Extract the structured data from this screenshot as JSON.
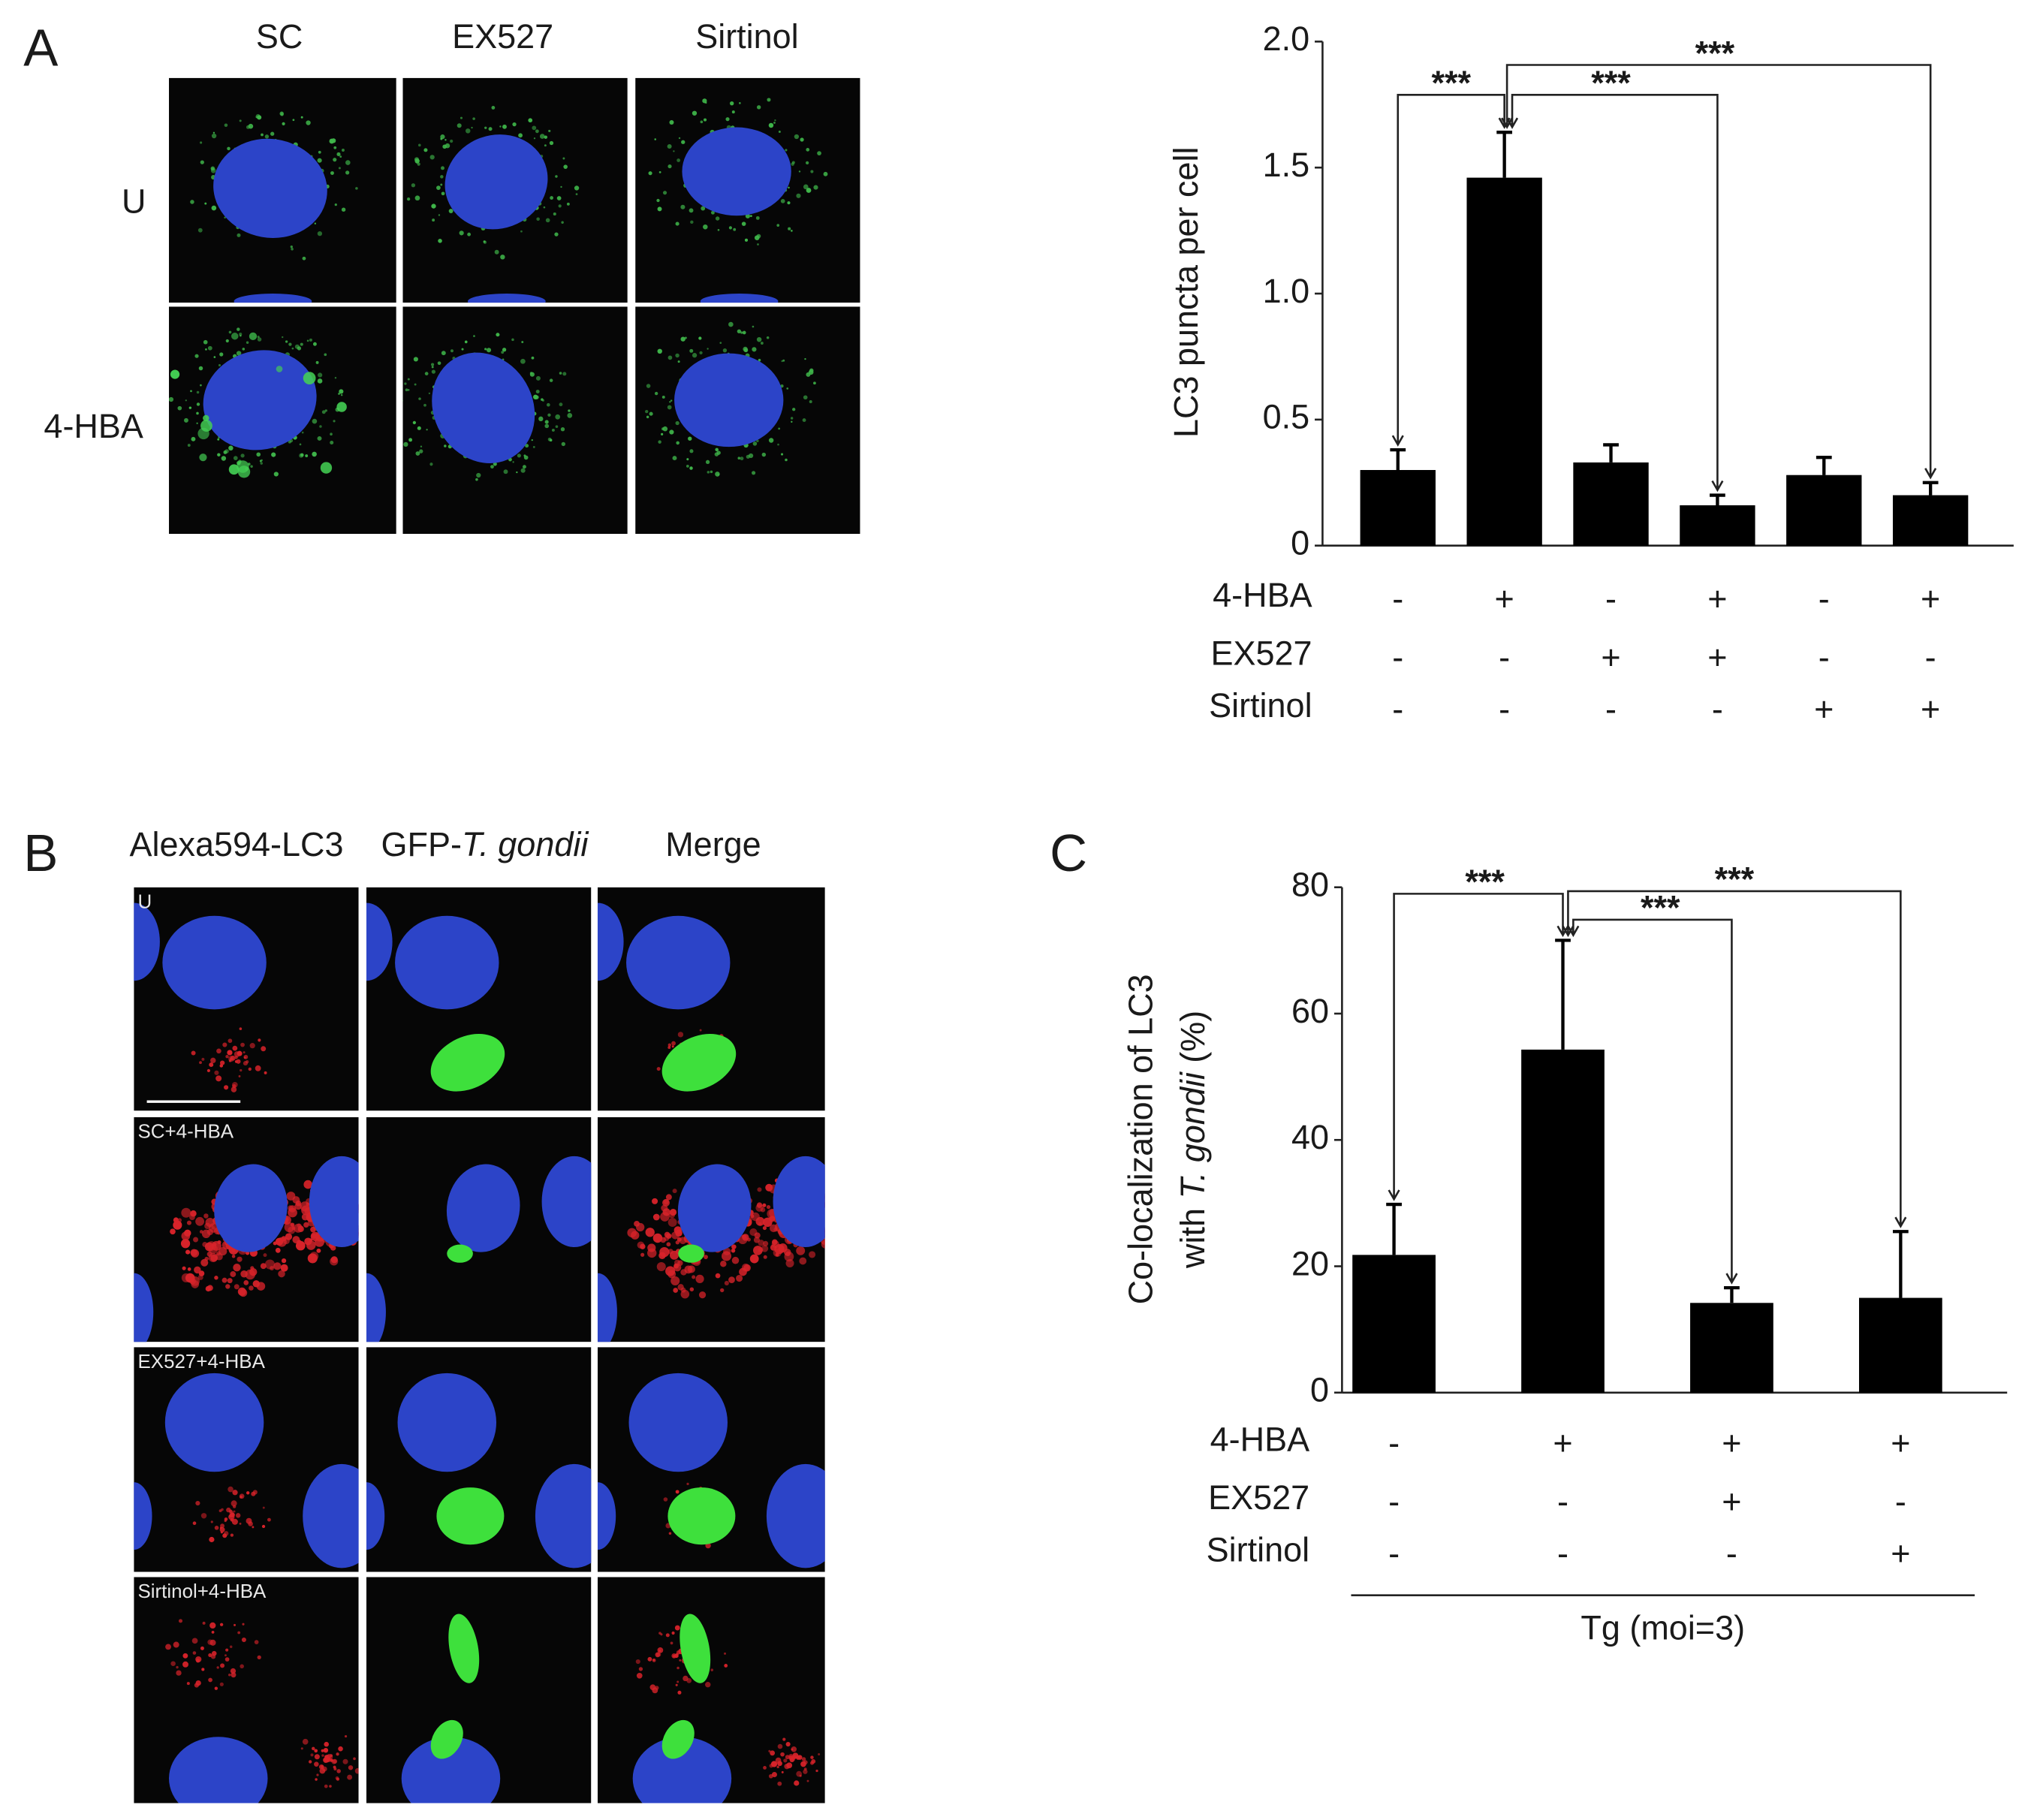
{
  "panel_a": {
    "letter": "A",
    "columns": [
      "SC",
      "EX527",
      "Sirtinol"
    ],
    "rows": [
      "U",
      "4-HBA"
    ]
  },
  "panel_b": {
    "letter": "B",
    "columns": [
      "Alexa594-LC3",
      [
        "GFP-",
        "T. gondii"
      ],
      "Merge"
    ],
    "row_labels": [
      "U",
      "SC+4-HBA",
      "EX527+4-HBA",
      "Sirtinol+4-HBA"
    ]
  },
  "chart_data": [
    {
      "type": "bar",
      "ylabel": "LC3 puncta per cell",
      "categories": [
        null,
        null,
        null,
        null,
        null,
        null
      ],
      "values": [
        0.3,
        1.46,
        0.33,
        0.16,
        0.28,
        0.2
      ],
      "errors": [
        0.08,
        0.18,
        0.07,
        0.04,
        0.07,
        0.05
      ],
      "color": "#000000",
      "ylim": [
        0,
        2
      ],
      "yticks": [
        0,
        0.5,
        {
          "value": 1,
          "label": "1.0"
        },
        1.5,
        {
          "value": 2,
          "label": "2.0"
        }
      ],
      "treatments": [
        {
          "name": "4-HBA",
          "signs": [
            "-",
            "+",
            "-",
            "+",
            "-",
            "+"
          ]
        },
        {
          "name": "EX527",
          "signs": [
            "-",
            "-",
            "+",
            "+",
            "-",
            "-"
          ]
        },
        {
          "name": "Sirtinol",
          "signs": [
            "-",
            "-",
            "-",
            "-",
            "+",
            "+"
          ]
        }
      ],
      "annotations": [
        "***",
        "***",
        "***"
      ]
    },
    {
      "type": "bar",
      "panel": "C",
      "ylabel": [
        [
          "Co-localization of LC3"
        ],
        [
          "with ",
          "T. gondii",
          " (%)"
        ]
      ],
      "categories": [
        null,
        null,
        null,
        null
      ],
      "values": [
        21.8,
        54.3,
        14.2,
        15.0
      ],
      "errors": [
        8.0,
        17.3,
        2.4,
        10.5
      ],
      "color": "#000000",
      "ylim": [
        0,
        80
      ],
      "yticks": [
        0,
        20,
        40,
        60,
        80
      ],
      "treatments": [
        {
          "name": "4-HBA",
          "signs": [
            "-",
            "+",
            "+",
            "+"
          ]
        },
        {
          "name": "EX527",
          "signs": [
            "-",
            "-",
            "+",
            "-"
          ]
        },
        {
          "name": "Sirtinol",
          "signs": [
            "-",
            "-",
            "-",
            "+"
          ]
        }
      ],
      "group_label": "Tg (moi=3)",
      "annotations": [
        "***",
        "***",
        "***"
      ]
    }
  ]
}
